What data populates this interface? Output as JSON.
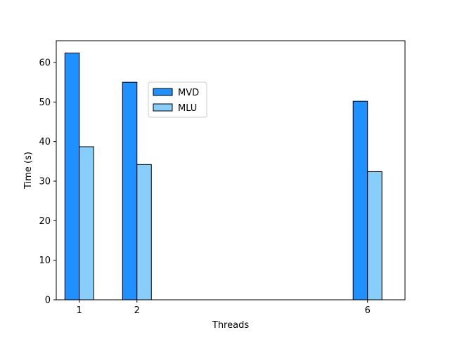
{
  "chart_data": {
    "type": "bar",
    "title": "",
    "xlabel": "Threads",
    "ylabel": "Time (s)",
    "x": [
      1,
      2,
      6
    ],
    "x_tick_labels": [
      "1",
      "2",
      "6"
    ],
    "xlim": [
      0.6,
      6.65
    ],
    "ylim": [
      0,
      65.5
    ],
    "y_ticks": [
      0,
      10,
      20,
      30,
      40,
      50,
      60
    ],
    "y_tick_labels": [
      "0",
      "10",
      "20",
      "30",
      "40",
      "50",
      "60"
    ],
    "grid": false,
    "legend_position": "upper-center",
    "series": [
      {
        "name": "MVD",
        "values": [
          62.4,
          55.0,
          50.2
        ],
        "color": "#1E90FF"
      },
      {
        "name": "MLU",
        "values": [
          38.7,
          34.2,
          32.4
        ],
        "color": "#87CEFA"
      }
    ],
    "bar_edge_color": "#000000"
  }
}
